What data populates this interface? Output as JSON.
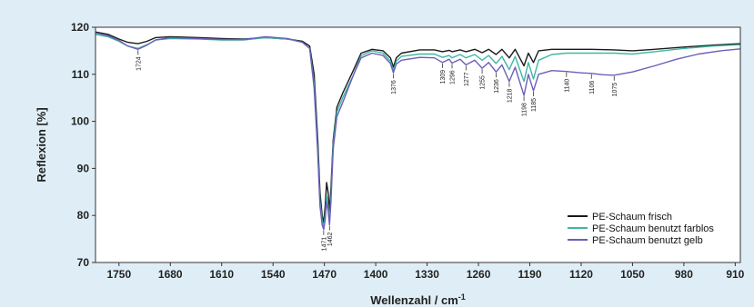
{
  "chart_data": {
    "type": "line",
    "xlabel": "Wellenzahl / cm",
    "xlabel_sup": "-1",
    "ylabel": "Reflexion [%]",
    "xlim": [
      1782,
      903
    ],
    "ylim": [
      70,
      120
    ],
    "x_reversed": true,
    "grid": false,
    "legend_position": "bottom-right",
    "x_ticks": [
      1750,
      1680,
      1610,
      1540,
      1470,
      1400,
      1330,
      1260,
      1190,
      1120,
      1050,
      980,
      910
    ],
    "y_ticks": [
      70,
      80,
      90,
      100,
      110,
      120
    ],
    "series": [
      {
        "name": "PE-Schaum frisch",
        "color": "#1a1a1a",
        "points": [
          [
            1782,
            119
          ],
          [
            1765,
            118.5
          ],
          [
            1750,
            117.5
          ],
          [
            1738,
            116.8
          ],
          [
            1724,
            116.5
          ],
          [
            1712,
            117
          ],
          [
            1700,
            117.8
          ],
          [
            1680,
            118
          ],
          [
            1640,
            117.8
          ],
          [
            1610,
            117.6
          ],
          [
            1580,
            117.5
          ],
          [
            1550,
            117.8
          ],
          [
            1520,
            117.5
          ],
          [
            1500,
            117
          ],
          [
            1490,
            116
          ],
          [
            1484,
            110
          ],
          [
            1479,
            96
          ],
          [
            1476,
            85
          ],
          [
            1473,
            80
          ],
          [
            1471,
            78.5
          ],
          [
            1469,
            82
          ],
          [
            1467,
            87
          ],
          [
            1465,
            85
          ],
          [
            1463,
            81
          ],
          [
            1461,
            86
          ],
          [
            1458,
            96
          ],
          [
            1453,
            103
          ],
          [
            1445,
            106
          ],
          [
            1430,
            111
          ],
          [
            1420,
            114.5
          ],
          [
            1405,
            115.3
          ],
          [
            1390,
            115
          ],
          [
            1380,
            113.5
          ],
          [
            1376,
            111.5
          ],
          [
            1372,
            113.5
          ],
          [
            1365,
            114.5
          ],
          [
            1340,
            115.2
          ],
          [
            1320,
            115.2
          ],
          [
            1309,
            114.8
          ],
          [
            1300,
            115.1
          ],
          [
            1296,
            114.8
          ],
          [
            1285,
            115.2
          ],
          [
            1277,
            114.8
          ],
          [
            1265,
            115.3
          ],
          [
            1255,
            114.6
          ],
          [
            1246,
            115.3
          ],
          [
            1236,
            114.2
          ],
          [
            1228,
            115.3
          ],
          [
            1218,
            113.5
          ],
          [
            1210,
            115.3
          ],
          [
            1198,
            111.8
          ],
          [
            1192,
            114.5
          ],
          [
            1185,
            112.5
          ],
          [
            1178,
            115
          ],
          [
            1160,
            115.3
          ],
          [
            1140,
            115.3
          ],
          [
            1106,
            115.3
          ],
          [
            1075,
            115.2
          ],
          [
            1050,
            115
          ],
          [
            1020,
            115.3
          ],
          [
            980,
            115.8
          ],
          [
            940,
            116.2
          ],
          [
            903,
            116.5
          ]
        ]
      },
      {
        "name": "PE-Schaum benutzt farblos",
        "color": "#3fb7a3",
        "points": [
          [
            1782,
            118.5
          ],
          [
            1765,
            118
          ],
          [
            1750,
            117
          ],
          [
            1738,
            116
          ],
          [
            1724,
            115.5
          ],
          [
            1712,
            116.3
          ],
          [
            1700,
            117.3
          ],
          [
            1680,
            117.6
          ],
          [
            1640,
            117.5
          ],
          [
            1610,
            117.3
          ],
          [
            1580,
            117.3
          ],
          [
            1550,
            117.8
          ],
          [
            1520,
            117.5
          ],
          [
            1500,
            116.8
          ],
          [
            1490,
            115.5
          ],
          [
            1484,
            108
          ],
          [
            1479,
            94
          ],
          [
            1476,
            83
          ],
          [
            1473,
            79
          ],
          [
            1471,
            77.5
          ],
          [
            1469,
            80
          ],
          [
            1467,
            84
          ],
          [
            1465,
            82
          ],
          [
            1463,
            79
          ],
          [
            1461,
            84
          ],
          [
            1458,
            95
          ],
          [
            1453,
            102
          ],
          [
            1445,
            105
          ],
          [
            1430,
            110
          ],
          [
            1420,
            114
          ],
          [
            1405,
            115
          ],
          [
            1390,
            114.5
          ],
          [
            1380,
            112.8
          ],
          [
            1376,
            110.8
          ],
          [
            1372,
            112.8
          ],
          [
            1365,
            113.8
          ],
          [
            1340,
            114.3
          ],
          [
            1320,
            114.3
          ],
          [
            1309,
            113.6
          ],
          [
            1300,
            114
          ],
          [
            1296,
            113.5
          ],
          [
            1285,
            114.2
          ],
          [
            1277,
            113.5
          ],
          [
            1265,
            114.2
          ],
          [
            1255,
            113
          ],
          [
            1246,
            114
          ],
          [
            1236,
            112.3
          ],
          [
            1228,
            113.8
          ],
          [
            1218,
            111
          ],
          [
            1210,
            113.8
          ],
          [
            1198,
            108.5
          ],
          [
            1192,
            112.5
          ],
          [
            1185,
            109
          ],
          [
            1178,
            113
          ],
          [
            1160,
            114.2
          ],
          [
            1140,
            114.5
          ],
          [
            1106,
            114.5
          ],
          [
            1075,
            114.5
          ],
          [
            1050,
            114.3
          ],
          [
            1020,
            114.8
          ],
          [
            980,
            115.5
          ],
          [
            940,
            116
          ],
          [
            903,
            116.3
          ]
        ]
      },
      {
        "name": "PE-Schaum benutzt gelb",
        "color": "#6b5fb8",
        "points": [
          [
            1782,
            118.8
          ],
          [
            1765,
            118.2
          ],
          [
            1750,
            117.2
          ],
          [
            1738,
            116
          ],
          [
            1724,
            115.3
          ],
          [
            1712,
            116.2
          ],
          [
            1700,
            117.3
          ],
          [
            1680,
            117.8
          ],
          [
            1640,
            117.6
          ],
          [
            1610,
            117.4
          ],
          [
            1580,
            117.4
          ],
          [
            1550,
            118
          ],
          [
            1520,
            117.6
          ],
          [
            1500,
            116.8
          ],
          [
            1490,
            115.5
          ],
          [
            1484,
            107
          ],
          [
            1479,
            93
          ],
          [
            1476,
            82
          ],
          [
            1473,
            78
          ],
          [
            1471,
            77
          ],
          [
            1469,
            79
          ],
          [
            1467,
            83
          ],
          [
            1465,
            81
          ],
          [
            1463,
            78
          ],
          [
            1461,
            83
          ],
          [
            1458,
            94
          ],
          [
            1453,
            101
          ],
          [
            1445,
            104
          ],
          [
            1430,
            110
          ],
          [
            1420,
            113.5
          ],
          [
            1405,
            114.5
          ],
          [
            1390,
            114
          ],
          [
            1380,
            112.3
          ],
          [
            1376,
            110.3
          ],
          [
            1372,
            112.2
          ],
          [
            1365,
            113
          ],
          [
            1340,
            113.6
          ],
          [
            1320,
            113.5
          ],
          [
            1309,
            112.5
          ],
          [
            1300,
            113.2
          ],
          [
            1296,
            112.4
          ],
          [
            1285,
            113.2
          ],
          [
            1277,
            112
          ],
          [
            1265,
            113
          ],
          [
            1255,
            111.3
          ],
          [
            1246,
            112.5
          ],
          [
            1236,
            110.5
          ],
          [
            1228,
            112
          ],
          [
            1218,
            108.5
          ],
          [
            1210,
            111.5
          ],
          [
            1198,
            105.5
          ],
          [
            1192,
            110
          ],
          [
            1185,
            106.5
          ],
          [
            1178,
            110
          ],
          [
            1160,
            110.8
          ],
          [
            1140,
            110.6
          ],
          [
            1120,
            110.3
          ],
          [
            1106,
            110.2
          ],
          [
            1090,
            109.9
          ],
          [
            1075,
            109.8
          ],
          [
            1050,
            110.5
          ],
          [
            1020,
            111.8
          ],
          [
            990,
            113.2
          ],
          [
            960,
            114.3
          ],
          [
            930,
            115
          ],
          [
            903,
            115.4
          ]
        ]
      }
    ],
    "annotations": [
      {
        "label": "1724",
        "x": 1724,
        "y": 115.3,
        "side": "below"
      },
      {
        "label": "1471",
        "x": 1471,
        "y": 77,
        "side": "below"
      },
      {
        "label": "1462",
        "x": 1463,
        "y": 78,
        "side": "below"
      },
      {
        "label": "1376",
        "x": 1376,
        "y": 110.3,
        "side": "below"
      },
      {
        "label": "1309",
        "x": 1309,
        "y": 112.5,
        "side": "below"
      },
      {
        "label": "1296",
        "x": 1296,
        "y": 112.4,
        "side": "below"
      },
      {
        "label": "1277",
        "x": 1277,
        "y": 112,
        "side": "below"
      },
      {
        "label": "1255",
        "x": 1255,
        "y": 111.3,
        "side": "below"
      },
      {
        "label": "1236",
        "x": 1236,
        "y": 110.5,
        "side": "below"
      },
      {
        "label": "1218",
        "x": 1218,
        "y": 108.5,
        "side": "below"
      },
      {
        "label": "1198",
        "x": 1198,
        "y": 105.5,
        "side": "below"
      },
      {
        "label": "1185",
        "x": 1185,
        "y": 106.5,
        "side": "below"
      },
      {
        "label": "1140",
        "x": 1140,
        "y": 110.6,
        "side": "below"
      },
      {
        "label": "1106",
        "x": 1106,
        "y": 110.2,
        "side": "below"
      },
      {
        "label": "1075",
        "x": 1075,
        "y": 109.8,
        "side": "below"
      }
    ]
  }
}
